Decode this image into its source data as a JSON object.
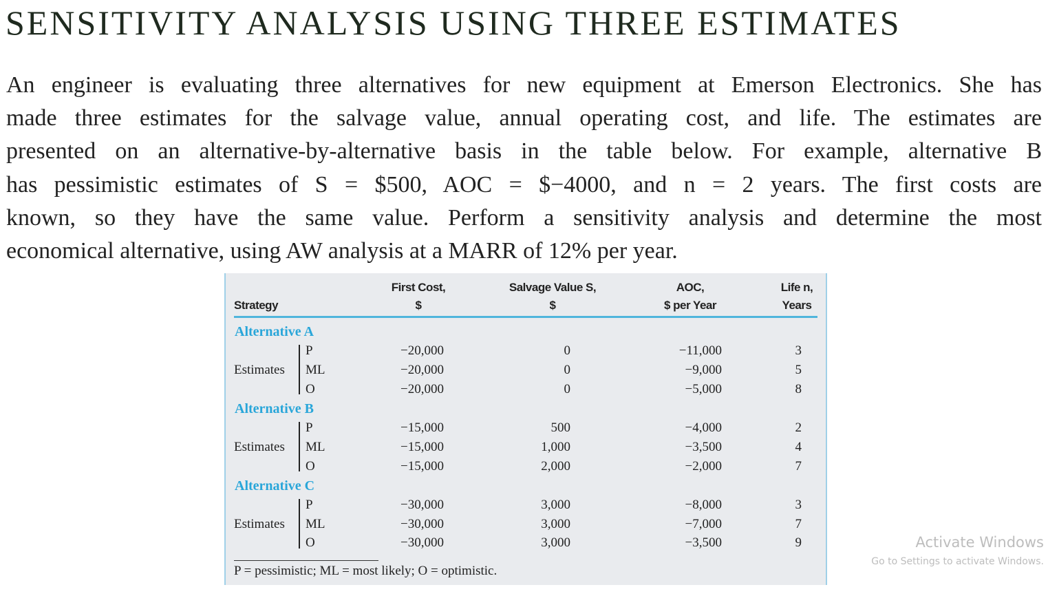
{
  "title": "SENSITIVITY ANALYSIS USING THREE ESTIMATES",
  "paragraph_lines": [
    "An engineer is evaluating three alternatives for new equipment at Emerson Electronics. She has",
    "made three estimates for the salvage value, annual operating cost, and life. The estimates are",
    "presented on an alternative-by-alternative basis in the table below. For example, alternative B",
    "has pessimistic estimates of S = $500, AOC = $−4000, and n = 2 years. The first costs are",
    "known, so they have the same value. Perform a sensitivity analysis and determine the most",
    "economical alternative, using AW analysis at a MARR of 12% per year."
  ],
  "table": {
    "headers": {
      "strategy": "Strategy",
      "first_cost": [
        "First Cost,",
        "$"
      ],
      "salvage": [
        "Salvage Value S,",
        "$"
      ],
      "aoc": [
        "AOC,",
        "$ per Year"
      ],
      "life": [
        "Life n,",
        "Years"
      ]
    },
    "estimates_label": "Estimates",
    "alternatives": [
      {
        "name": "Alternative A",
        "rows": [
          {
            "est": "P",
            "first_cost": "−20,000",
            "salvage": "0",
            "aoc": "−11,000",
            "life": "3"
          },
          {
            "est": "ML",
            "first_cost": "−20,000",
            "salvage": "0",
            "aoc": "−9,000",
            "life": "5"
          },
          {
            "est": "O",
            "first_cost": "−20,000",
            "salvage": "0",
            "aoc": "−5,000",
            "life": "8"
          }
        ]
      },
      {
        "name": "Alternative B",
        "rows": [
          {
            "est": "P",
            "first_cost": "−15,000",
            "salvage": "500",
            "aoc": "−4,000",
            "life": "2"
          },
          {
            "est": "ML",
            "first_cost": "−15,000",
            "salvage": "1,000",
            "aoc": "−3,500",
            "life": "4"
          },
          {
            "est": "O",
            "first_cost": "−15,000",
            "salvage": "2,000",
            "aoc": "−2,000",
            "life": "7"
          }
        ]
      },
      {
        "name": "Alternative C",
        "rows": [
          {
            "est": "P",
            "first_cost": "−30,000",
            "salvage": "3,000",
            "aoc": "−8,000",
            "life": "3"
          },
          {
            "est": "ML",
            "first_cost": "−30,000",
            "salvage": "3,000",
            "aoc": "−7,000",
            "life": "7"
          },
          {
            "est": "O",
            "first_cost": "−30,000",
            "salvage": "3,000",
            "aoc": "−3,500",
            "life": "9"
          }
        ]
      }
    ],
    "footnote": "P = pessimistic; ML = most likely; O = optimistic."
  },
  "watermark": {
    "line1": "Activate Windows",
    "line2": "Go to Settings to activate Windows."
  },
  "colors": {
    "accent": "#29a6d9",
    "table_bg": "#e9ebee"
  }
}
